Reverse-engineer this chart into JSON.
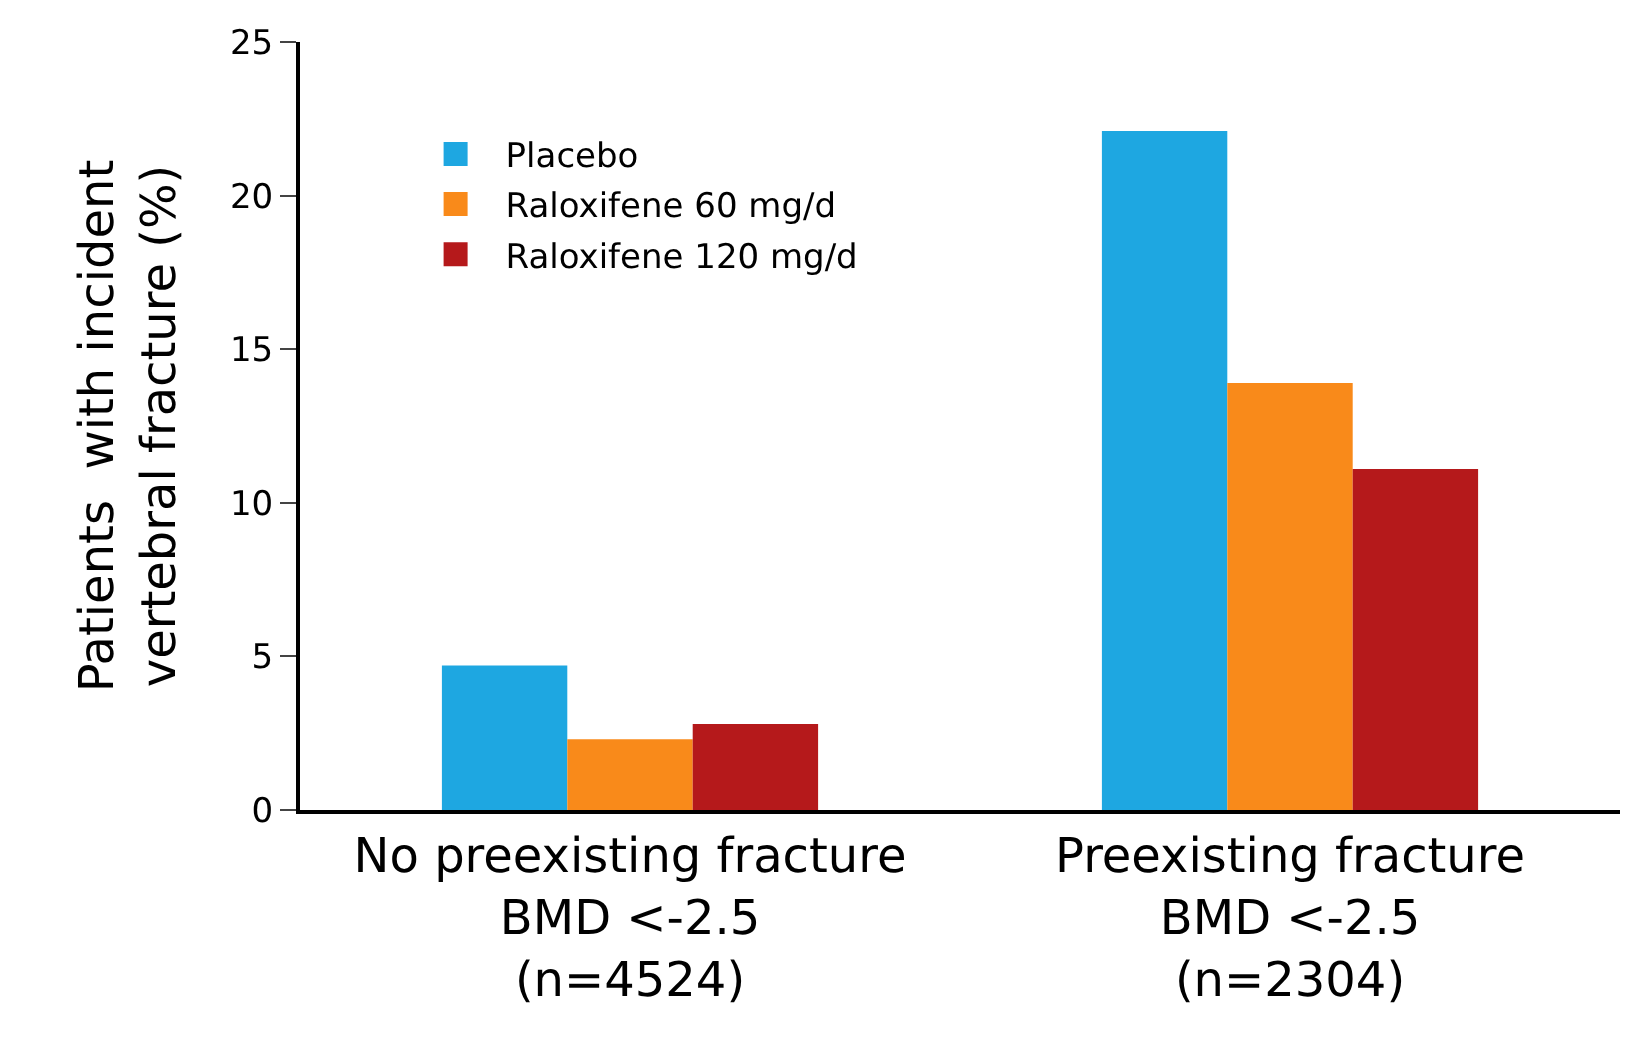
{
  "chart_data": {
    "type": "bar",
    "ylabel": "Patients  with incident\nvertebral fracture (%)",
    "categories": [
      "No preexisting fracture\nBMD <-2.5\n(n=4524)",
      "Preexisting fracture\nBMD <-2.5\n(n=2304)"
    ],
    "series": [
      {
        "name": "Placebo",
        "color": "#1ea7e1",
        "values": [
          4.7,
          22.1
        ]
      },
      {
        "name": "Raloxifene 60 mg/d",
        "color": "#f98a1a",
        "values": [
          2.3,
          13.9
        ]
      },
      {
        "name": "Raloxifene 120 mg/d",
        "color": "#b5191b",
        "values": [
          2.8,
          11.1
        ]
      }
    ],
    "ylim": [
      0,
      25
    ],
    "yticks": [
      0,
      5,
      10,
      15,
      20,
      25
    ],
    "grid": false,
    "legend": "top left"
  }
}
